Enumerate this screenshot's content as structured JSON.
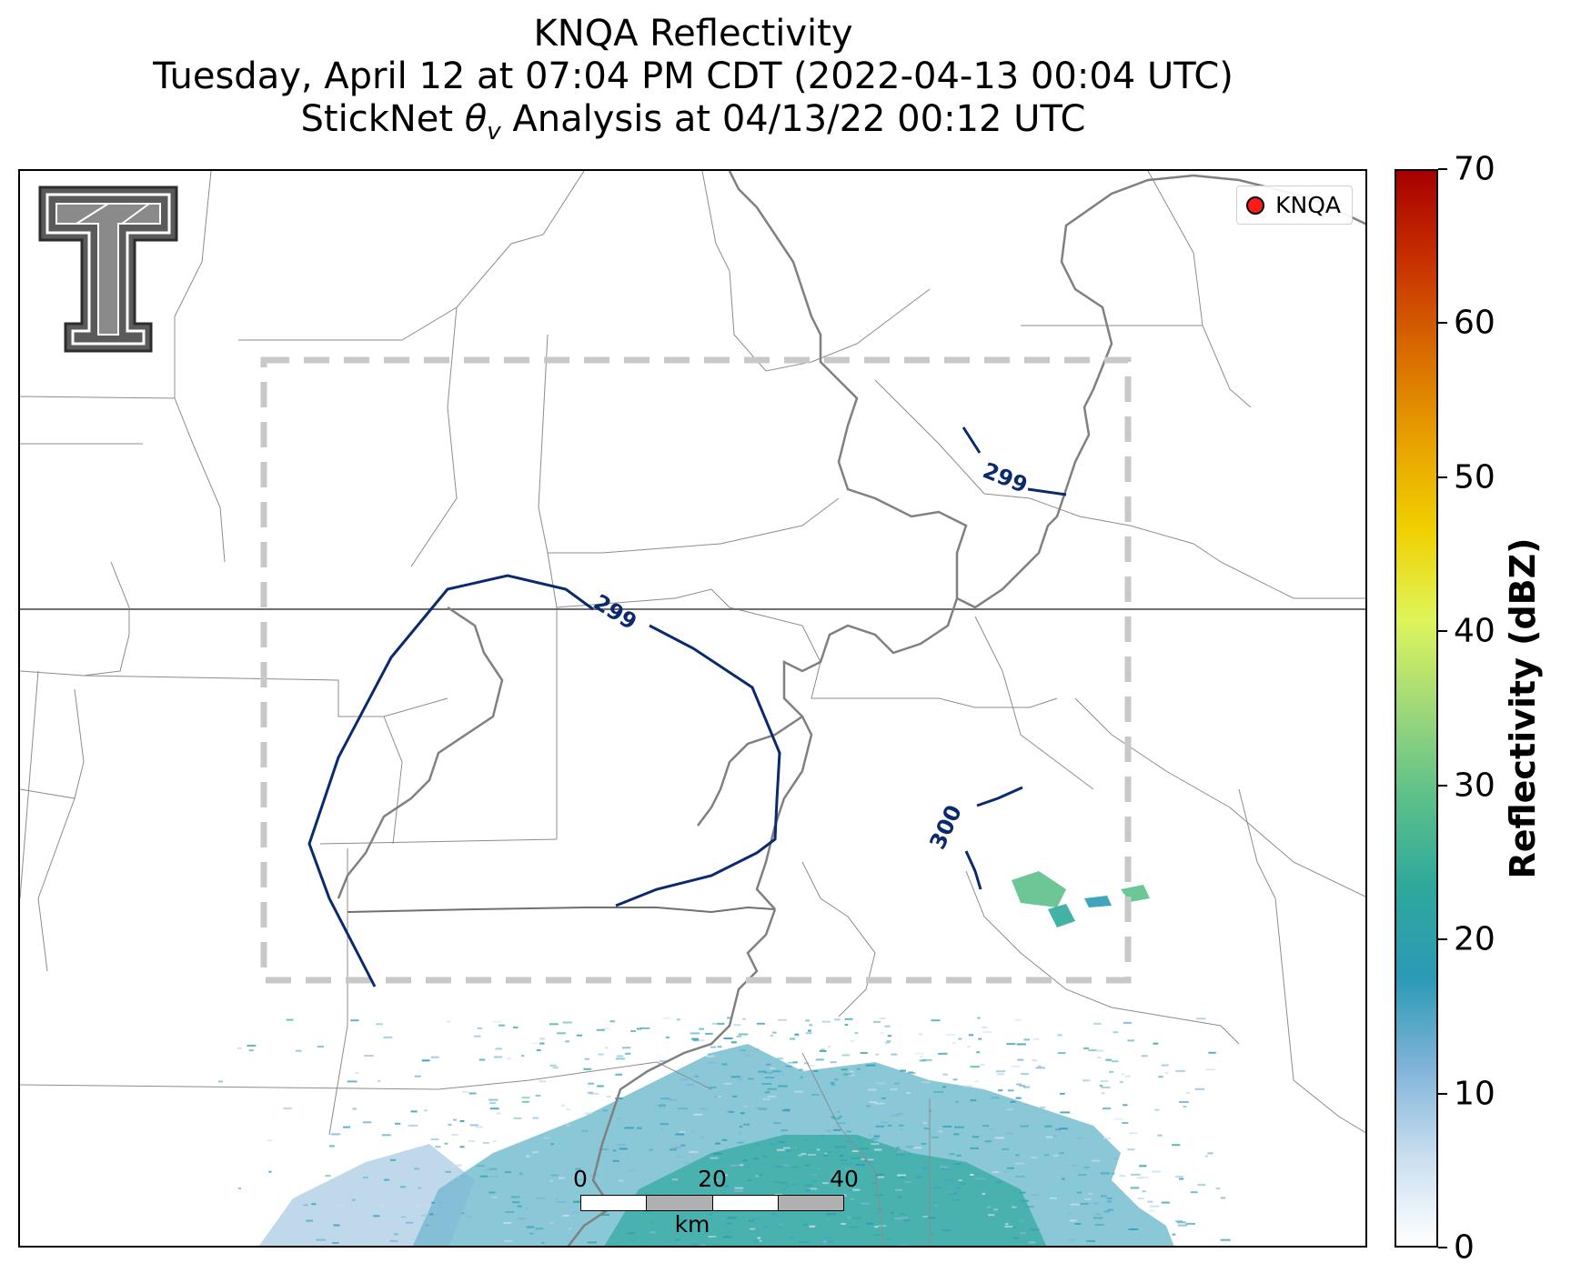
{
  "title": {
    "line1": "KNQA Reflectivity",
    "line2": "Tuesday, April 12 at 07:04 PM CDT (2022-04-13 00:04 UTC)",
    "line3": "StickNet θv Analysis at 04/13/22 00:12 UTC"
  },
  "legend": {
    "station_label": "KNQA",
    "marker_color": "#ff1a1a"
  },
  "contours": {
    "labels": [
      "299",
      "299",
      "300"
    ],
    "color": "#0b2a6e"
  },
  "scalebar": {
    "ticks": [
      "0",
      "20",
      "40"
    ],
    "unit": "km"
  },
  "colorbar": {
    "title": "Reflectivity (dBZ)",
    "ticks": [
      "0",
      "10",
      "20",
      "30",
      "40",
      "50",
      "60",
      "70"
    ],
    "range": [
      0,
      70
    ],
    "colors": [
      "#ffffff",
      "#c9def0",
      "#7fb3d8",
      "#2b9ab6",
      "#2ea89c",
      "#5cc08a",
      "#9fd879",
      "#dff55a",
      "#f0d000",
      "#e8a000",
      "#d86a00",
      "#c83000",
      "#a80000"
    ]
  },
  "logo": {
    "name": "texas-tech-double-t-logo"
  }
}
